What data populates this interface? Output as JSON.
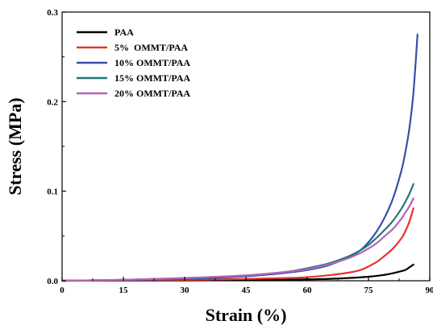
{
  "chart_data": {
    "type": "line",
    "title": "",
    "xlabel": "Strain (%)",
    "ylabel": "Stress (MPa)",
    "xlim": [
      0,
      90
    ],
    "ylim": [
      0,
      0.3
    ],
    "xticks": [
      0,
      15,
      30,
      45,
      60,
      75,
      90
    ],
    "xtick_labels": [
      "0",
      "15",
      "30",
      "45",
      "60",
      "75",
      "90"
    ],
    "yticks": [
      0.0,
      0.1,
      0.2,
      0.3
    ],
    "ytick_labels": [
      "0.0",
      "0.1",
      "0.2",
      "0.3"
    ],
    "grid": false,
    "legend_position": "top-left",
    "series": [
      {
        "name": "PAA",
        "color": "#000000",
        "x": [
          0,
          15,
          30,
          45,
          55,
          60,
          65,
          70,
          75,
          78,
          80,
          82,
          84,
          85,
          86
        ],
        "y": [
          0.0,
          0.0002,
          0.0004,
          0.0008,
          0.0012,
          0.0016,
          0.002,
          0.003,
          0.0045,
          0.006,
          0.0075,
          0.0095,
          0.012,
          0.015,
          0.018
        ]
      },
      {
        "name": "5%  OMMT/PAA",
        "color": "#e8322a",
        "x": [
          0,
          15,
          30,
          45,
          55,
          60,
          65,
          70,
          73,
          75,
          77,
          79,
          81,
          83,
          84,
          85,
          86
        ],
        "y": [
          0.0,
          0.0005,
          0.001,
          0.002,
          0.003,
          0.004,
          0.006,
          0.009,
          0.012,
          0.016,
          0.021,
          0.028,
          0.036,
          0.047,
          0.055,
          0.066,
          0.081
        ]
      },
      {
        "name": "10% OMMT/PAA",
        "color": "#3a4fa8",
        "x": [
          0,
          15,
          30,
          45,
          55,
          60,
          65,
          70,
          73,
          75,
          77,
          79,
          81,
          83,
          84,
          85,
          86,
          87
        ],
        "y": [
          0.0,
          0.001,
          0.002,
          0.005,
          0.009,
          0.012,
          0.017,
          0.026,
          0.034,
          0.043,
          0.055,
          0.071,
          0.092,
          0.122,
          0.143,
          0.17,
          0.21,
          0.275
        ]
      },
      {
        "name": "15% OMMT/PAA",
        "color": "#1f7a75",
        "x": [
          0,
          15,
          30,
          45,
          55,
          60,
          65,
          70,
          73,
          75,
          77,
          79,
          81,
          83,
          84,
          85,
          86
        ],
        "y": [
          0.0,
          0.001,
          0.003,
          0.006,
          0.01,
          0.014,
          0.019,
          0.027,
          0.034,
          0.04,
          0.048,
          0.057,
          0.067,
          0.08,
          0.088,
          0.097,
          0.108
        ]
      },
      {
        "name": "20% OMMT/PAA",
        "color": "#b565b8",
        "x": [
          0,
          15,
          30,
          45,
          55,
          60,
          65,
          70,
          73,
          75,
          77,
          79,
          81,
          83,
          84,
          85,
          86
        ],
        "y": [
          0.0,
          0.001,
          0.003,
          0.006,
          0.01,
          0.013,
          0.018,
          0.025,
          0.031,
          0.036,
          0.042,
          0.05,
          0.058,
          0.069,
          0.076,
          0.083,
          0.092
        ]
      }
    ]
  }
}
